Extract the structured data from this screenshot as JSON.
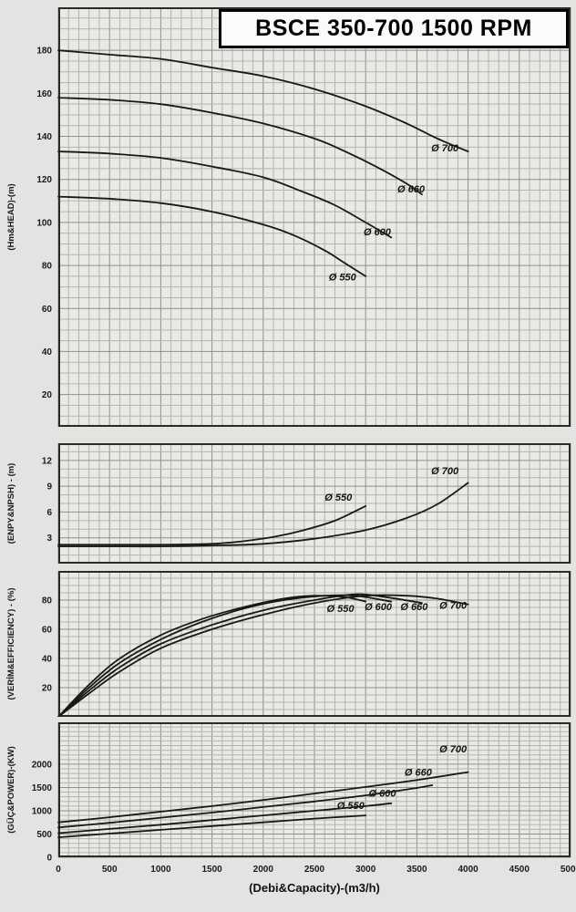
{
  "title": "BSCE 350-700 1500 RPM",
  "x_axis_title": "(Debi&Capacity)-(m3/h)",
  "xticks": [
    0,
    500,
    1000,
    1500,
    2000,
    2500,
    3000,
    3500,
    4000,
    4500,
    5000
  ],
  "chart_data": [
    {
      "id": "head",
      "type": "line",
      "ylabel": "(Hm&HEAD)-(m)",
      "xlabel": "(Debi&Capacity)-(m3/h)",
      "xlim": [
        0,
        5000
      ],
      "ylim": [
        5,
        200
      ],
      "yticks": [
        20,
        40,
        60,
        80,
        100,
        120,
        140,
        160,
        180
      ],
      "y_minor": 5,
      "x_minor": 100,
      "series": [
        {
          "name": "Ø 550",
          "label_x": 2640,
          "label_y": 73,
          "points": [
            [
              0,
              112
            ],
            [
              500,
              111
            ],
            [
              1000,
              109
            ],
            [
              1500,
              105
            ],
            [
              2000,
              99
            ],
            [
              2300,
              94
            ],
            [
              2600,
              87
            ],
            [
              2800,
              81
            ],
            [
              3000,
              75
            ]
          ]
        },
        {
          "name": "Ø 600",
          "label_x": 2980,
          "label_y": 94,
          "points": [
            [
              0,
              133
            ],
            [
              500,
              132
            ],
            [
              1000,
              130
            ],
            [
              1500,
              126
            ],
            [
              2000,
              121
            ],
            [
              2400,
              114
            ],
            [
              2700,
              108
            ],
            [
              3000,
              100
            ],
            [
              3250,
              93
            ]
          ]
        },
        {
          "name": "Ø 660",
          "label_x": 3310,
          "label_y": 114,
          "points": [
            [
              0,
              158
            ],
            [
              500,
              157
            ],
            [
              1000,
              155
            ],
            [
              1500,
              151
            ],
            [
              2000,
              146
            ],
            [
              2500,
              139
            ],
            [
              2800,
              133
            ],
            [
              3100,
              126
            ],
            [
              3400,
              118
            ],
            [
              3550,
              113
            ]
          ]
        },
        {
          "name": "Ø 700",
          "label_x": 3640,
          "label_y": 133,
          "points": [
            [
              0,
              180
            ],
            [
              500,
              178
            ],
            [
              1000,
              176
            ],
            [
              1500,
              172
            ],
            [
              2000,
              168
            ],
            [
              2500,
              162
            ],
            [
              3000,
              154
            ],
            [
              3400,
              146
            ],
            [
              3700,
              139
            ],
            [
              4000,
              133
            ]
          ]
        }
      ]
    },
    {
      "id": "npsh",
      "type": "line",
      "ylabel": "(ENPY&NPSH) - (m)",
      "xlim": [
        0,
        5000
      ],
      "ylim": [
        0,
        14
      ],
      "yticks": [
        3,
        6,
        9,
        12
      ],
      "y_minor": 1,
      "x_minor": 100,
      "series": [
        {
          "name": "Ø 550",
          "label_x": 2600,
          "label_y": 7.3,
          "points": [
            [
              0,
              2.2
            ],
            [
              500,
              2.2
            ],
            [
              1000,
              2.2
            ],
            [
              1500,
              2.3
            ],
            [
              1800,
              2.6
            ],
            [
              2100,
              3.1
            ],
            [
              2400,
              3.9
            ],
            [
              2700,
              5.0
            ],
            [
              3000,
              6.7
            ]
          ]
        },
        {
          "name": "Ø 700",
          "label_x": 3640,
          "label_y": 10.4,
          "points": [
            [
              0,
              2.0
            ],
            [
              500,
              2.0
            ],
            [
              1000,
              2.0
            ],
            [
              1500,
              2.1
            ],
            [
              2000,
              2.3
            ],
            [
              2500,
              2.9
            ],
            [
              3000,
              3.9
            ],
            [
              3400,
              5.3
            ],
            [
              3700,
              6.9
            ],
            [
              4000,
              9.4
            ]
          ]
        }
      ]
    },
    {
      "id": "efficiency",
      "type": "line",
      "ylabel": "(VERİM&EFFICIENCY) - (%)",
      "xlim": [
        0,
        5000
      ],
      "ylim": [
        0,
        100
      ],
      "yticks": [
        20,
        40,
        60,
        80
      ],
      "y_minor": 5,
      "x_minor": 100,
      "series": [
        {
          "name": "Ø 550",
          "label_x": 2620,
          "label_y": 72,
          "points": [
            [
              0,
              0
            ],
            [
              300,
              22
            ],
            [
              600,
              40
            ],
            [
              1000,
              56
            ],
            [
              1400,
              67
            ],
            [
              1800,
              75
            ],
            [
              2200,
              81
            ],
            [
              2500,
              83
            ],
            [
              2800,
              82
            ],
            [
              3000,
              79
            ]
          ]
        },
        {
          "name": "Ø 600",
          "label_x": 2990,
          "label_y": 73,
          "points": [
            [
              0,
              0
            ],
            [
              300,
              20
            ],
            [
              600,
              37
            ],
            [
              1000,
              53
            ],
            [
              1400,
              65
            ],
            [
              1800,
              74
            ],
            [
              2200,
              80
            ],
            [
              2600,
              83
            ],
            [
              2900,
              83
            ],
            [
              3250,
              79
            ]
          ]
        },
        {
          "name": "Ø 660",
          "label_x": 3340,
          "label_y": 73,
          "points": [
            [
              0,
              0
            ],
            [
              300,
              18
            ],
            [
              600,
              34
            ],
            [
              1000,
              50
            ],
            [
              1500,
              63
            ],
            [
              2000,
              73
            ],
            [
              2500,
              80
            ],
            [
              2900,
              84
            ],
            [
              3200,
              82
            ],
            [
              3550,
              78
            ]
          ]
        },
        {
          "name": "Ø 700",
          "label_x": 3720,
          "label_y": 74,
          "points": [
            [
              0,
              0
            ],
            [
              300,
              16
            ],
            [
              600,
              31
            ],
            [
              1000,
              47
            ],
            [
              1500,
              60
            ],
            [
              2000,
              70
            ],
            [
              2500,
              78
            ],
            [
              3000,
              83
            ],
            [
              3400,
              83
            ],
            [
              3700,
              81
            ],
            [
              4000,
              77
            ]
          ]
        }
      ]
    },
    {
      "id": "power",
      "type": "line",
      "ylabel": "(GÜÇ&POWER)-(KW)",
      "xlim": [
        0,
        5000
      ],
      "ylim": [
        0,
        2900
      ],
      "yticks": [
        0,
        500,
        1000,
        1500,
        2000
      ],
      "y_minor": 100,
      "x_minor": 100,
      "series": [
        {
          "name": "Ø 550",
          "label_x": 2720,
          "label_y": 1040,
          "points": [
            [
              0,
              430
            ],
            [
              500,
              510
            ],
            [
              1000,
              590
            ],
            [
              1500,
              670
            ],
            [
              2000,
              750
            ],
            [
              2500,
              830
            ],
            [
              3000,
              900
            ]
          ]
        },
        {
          "name": "Ø 600",
          "label_x": 3030,
          "label_y": 1300,
          "points": [
            [
              0,
              520
            ],
            [
              500,
              610
            ],
            [
              1000,
              700
            ],
            [
              1500,
              800
            ],
            [
              2000,
              900
            ],
            [
              2500,
              1000
            ],
            [
              3000,
              1100
            ],
            [
              3250,
              1160
            ]
          ]
        },
        {
          "name": "Ø 660",
          "label_x": 3380,
          "label_y": 1750,
          "points": [
            [
              0,
              640
            ],
            [
              500,
              740
            ],
            [
              1000,
              850
            ],
            [
              1500,
              960
            ],
            [
              2000,
              1080
            ],
            [
              2500,
              1200
            ],
            [
              3000,
              1330
            ],
            [
              3500,
              1490
            ],
            [
              3650,
              1550
            ]
          ]
        },
        {
          "name": "Ø 700",
          "label_x": 3720,
          "label_y": 2250,
          "points": [
            [
              0,
              750
            ],
            [
              500,
              860
            ],
            [
              1000,
              980
            ],
            [
              1500,
              1100
            ],
            [
              2000,
              1230
            ],
            [
              2500,
              1370
            ],
            [
              3000,
              1510
            ],
            [
              3500,
              1660
            ],
            [
              4000,
              1830
            ]
          ]
        }
      ]
    }
  ]
}
